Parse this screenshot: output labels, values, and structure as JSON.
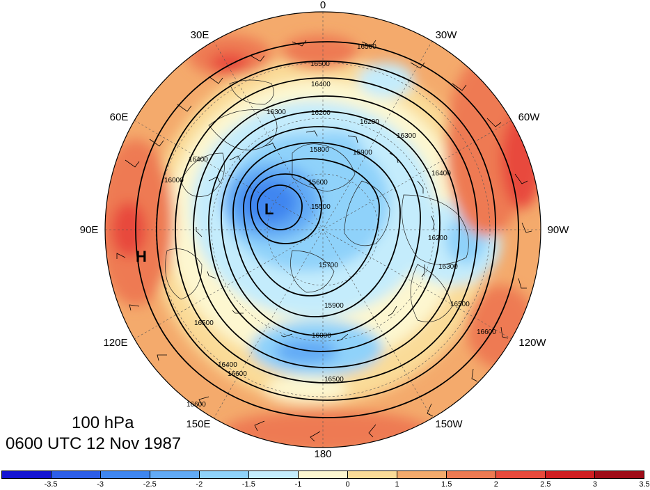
{
  "map": {
    "longitude_labels": [
      {
        "text": "0",
        "key": "n"
      },
      {
        "text": "30E",
        "key": "30e"
      },
      {
        "text": "30W",
        "key": "30w"
      },
      {
        "text": "60E",
        "key": "60e"
      },
      {
        "text": "60W",
        "key": "60w"
      },
      {
        "text": "90E",
        "key": "90e"
      },
      {
        "text": "90W",
        "key": "90w"
      },
      {
        "text": "120E",
        "key": "120e"
      },
      {
        "text": "120W",
        "key": "120w"
      },
      {
        "text": "150E",
        "key": "150e"
      },
      {
        "text": "150W",
        "key": "150w"
      },
      {
        "text": "180",
        "key": "s"
      }
    ],
    "contour_labels": [
      "16500",
      "16400",
      "16500",
      "16200",
      "16300",
      "16200",
      "15800",
      "15900",
      "16400",
      "16000",
      "15600",
      "15500",
      "16400",
      "16300",
      "16200",
      "15700",
      "16300",
      "15900",
      "16000",
      "16500",
      "16600",
      "16500",
      "16400",
      "16600",
      "16500",
      "16600"
    ],
    "low_marker": "L",
    "high_marker": "H"
  },
  "caption": {
    "level": "100 hPa",
    "time": "0600 UTC 12 Nov 1987"
  },
  "colorbar": {
    "colors": [
      "#1414d2",
      "#2d5ee8",
      "#3f86f0",
      "#62aaf5",
      "#8fd2fa",
      "#c4ecfc",
      "#fdf7d0",
      "#fadb98",
      "#f4aa6c",
      "#ee7a52",
      "#e84a3c",
      "#d01e22",
      "#a00c18"
    ],
    "labels": [
      "-3.5",
      "-3",
      "-2.5",
      "-2",
      "-1.5",
      "-1",
      "0",
      "1",
      "1.5",
      "2",
      "2.5",
      "3",
      "3.5"
    ]
  }
}
